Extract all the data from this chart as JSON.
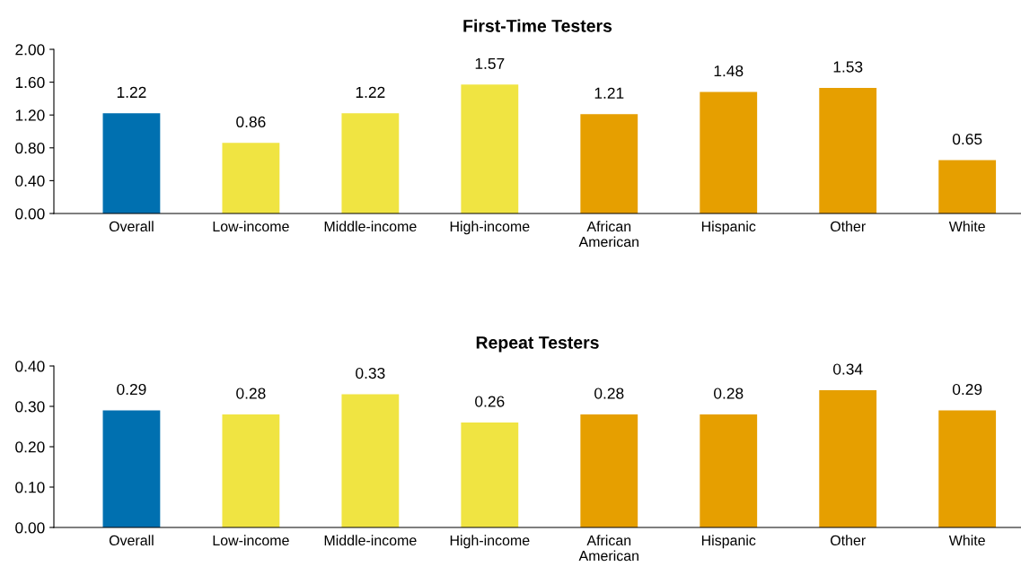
{
  "chart_data": [
    {
      "type": "bar",
      "title": "First-Time Testers",
      "categories": [
        "Overall",
        "Low-income",
        "Middle-income",
        "High-income",
        "African\nAmerican",
        "Hispanic",
        "Other",
        "White"
      ],
      "values": [
        1.22,
        0.86,
        1.22,
        1.57,
        1.21,
        1.48,
        1.53,
        0.65
      ],
      "colors": [
        "#0070b0",
        "#f0e442",
        "#f0e442",
        "#f0e442",
        "#e69f00",
        "#e69f00",
        "#e69f00",
        "#e69f00"
      ],
      "ylim": [
        0,
        2
      ],
      "yticks": [
        {
          "value": 0,
          "label": "0.00"
        },
        {
          "value": 0.4,
          "label": "0.40"
        },
        {
          "value": 0.8,
          "label": "0.80"
        },
        {
          "value": 1.2,
          "label": "1.20"
        },
        {
          "value": 1.6,
          "label": "1.60"
        },
        {
          "value": 2,
          "label": "2.00"
        }
      ],
      "data_labels": true,
      "grid": false,
      "legend": false
    },
    {
      "type": "bar",
      "title": "Repeat Testers",
      "categories": [
        "Overall",
        "Low-income",
        "Middle-income",
        "High-income",
        "African\nAmerican",
        "Hispanic",
        "Other",
        "White"
      ],
      "values": [
        0.29,
        0.28,
        0.33,
        0.26,
        0.28,
        0.28,
        0.34,
        0.29
      ],
      "colors": [
        "#0070b0",
        "#f0e442",
        "#f0e442",
        "#f0e442",
        "#e69f00",
        "#e69f00",
        "#e69f00",
        "#e69f00"
      ],
      "ylim": [
        0,
        0.4
      ],
      "yticks": [
        {
          "value": 0,
          "label": "0.00"
        },
        {
          "value": 0.1,
          "label": "0.10"
        },
        {
          "value": 0.2,
          "label": "0.20"
        },
        {
          "value": 0.3,
          "label": "0.30"
        },
        {
          "value": 0.4,
          "label": "0.40"
        }
      ],
      "data_labels": true,
      "grid": false,
      "legend": false
    }
  ]
}
